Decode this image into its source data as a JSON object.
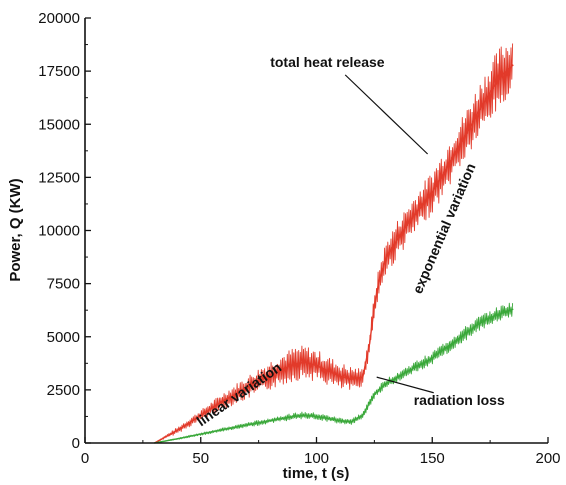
{
  "chart_data": {
    "type": "line",
    "title": "",
    "xlabel": "time, t (s)",
    "ylabel": "Power, Q (KW)",
    "xlim": [
      0,
      200
    ],
    "ylim": [
      0,
      20000
    ],
    "xticks": [
      "0",
      "50",
      "100",
      "150",
      "200"
    ],
    "yticks": [
      "0",
      "2500",
      "5000",
      "7500",
      "10000",
      "12500",
      "15000",
      "17500",
      "20000"
    ],
    "grid": false,
    "legend": "none",
    "series": [
      {
        "color": "#e23a2a",
        "x": [
          30,
          40,
          50,
          60,
          70,
          80,
          90,
          95,
          100,
          110,
          115,
          120,
          123,
          125,
          127,
          130,
          135,
          140,
          145,
          150,
          155,
          160,
          165,
          170,
          175,
          180,
          185
        ],
        "values": [
          0,
          600,
          1300,
          2000,
          2600,
          3200,
          3700,
          3800,
          3650,
          3150,
          3000,
          3100,
          4700,
          6500,
          7600,
          8700,
          9600,
          10400,
          11100,
          11800,
          12700,
          13700,
          14600,
          15600,
          16500,
          17300,
          17800
        ],
        "noise": [
          0,
          150,
          250,
          400,
          550,
          700,
          800,
          800,
          750,
          650,
          600,
          400,
          500,
          600,
          700,
          800,
          900,
          900,
          1000,
          1000,
          1100,
          1100,
          1200,
          1300,
          1400,
          1500,
          1500
        ]
      },
      {
        "color": "#3aa83a",
        "x": [
          30,
          40,
          50,
          60,
          70,
          80,
          90,
          95,
          100,
          110,
          115,
          120,
          125,
          130,
          135,
          140,
          145,
          150,
          155,
          160,
          165,
          170,
          175,
          180,
          185
        ],
        "values": [
          0,
          200,
          420,
          640,
          850,
          1050,
          1250,
          1300,
          1250,
          1050,
          1000,
          1300,
          2300,
          2800,
          3100,
          3400,
          3700,
          4000,
          4400,
          4800,
          5200,
          5600,
          5900,
          6100,
          6300
        ],
        "noise": [
          0,
          40,
          60,
          80,
          110,
          130,
          160,
          170,
          160,
          140,
          130,
          150,
          200,
          220,
          240,
          260,
          280,
          300,
          320,
          320,
          340,
          340,
          360,
          380,
          380
        ]
      }
    ],
    "annotations": [
      {
        "text": "total heat release",
        "x": 80,
        "y": 17700,
        "arrow_to": [
          148,
          13600
        ]
      },
      {
        "text": "exponential variation",
        "x": 140,
        "y": 13000
      },
      {
        "text": "linear variation",
        "x": 57,
        "y": 1800
      },
      {
        "text": "radiation loss",
        "x": 142,
        "y": 1800,
        "arrow_to": [
          126,
          3100
        ]
      }
    ]
  }
}
